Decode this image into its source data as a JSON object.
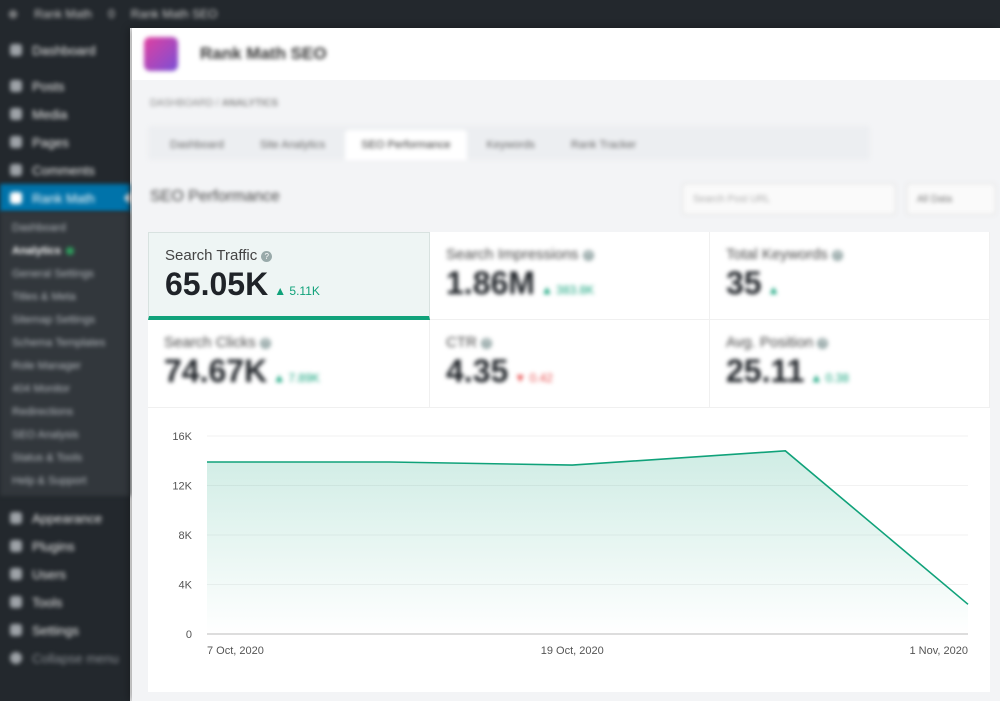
{
  "adminbar": {
    "items": [
      "Rank Math",
      "0",
      "Rank Math SEO"
    ]
  },
  "sidebar": {
    "items": [
      "Dashboard",
      "Posts",
      "Media",
      "Pages",
      "Comments",
      "Rank Math"
    ],
    "submenu": [
      "Dashboard",
      "Analytics",
      "General Settings",
      "Titles & Meta",
      "Sitemap Settings",
      "Schema Templates",
      "Role Manager",
      "404 Monitor",
      "Redirections",
      "SEO Analysis",
      "Status & Tools",
      "Help & Support"
    ],
    "lower": [
      "Appearance",
      "Plugins",
      "Users",
      "Tools",
      "Settings",
      "Collapse menu"
    ]
  },
  "header": {
    "title": "Rank Math SEO"
  },
  "breadcrumb": {
    "parent": "DASHBOARD",
    "current": "ANALYTICS"
  },
  "tabs": [
    "Dashboard",
    "Site Analytics",
    "SEO Performance",
    "Keywords",
    "Rank Tracker"
  ],
  "page": {
    "title": "SEO Performance",
    "search_placeholder": "Search Post URL",
    "filter": "All Data"
  },
  "cards": [
    {
      "label": "Search Traffic",
      "value": "65.05K",
      "delta": "5.11K",
      "trend": "up",
      "selected": true
    },
    {
      "label": "Search Impressions",
      "value": "1.86M",
      "delta": "383.8K",
      "trend": "up"
    },
    {
      "label": "Total Keywords",
      "value": "35",
      "delta": "",
      "trend": "up"
    },
    {
      "label": "Search Clicks",
      "value": "74.67K",
      "delta": "7.89K",
      "trend": "up"
    },
    {
      "label": "CTR",
      "value": "4.35",
      "delta": "0.42",
      "trend": "down"
    },
    {
      "label": "Avg. Position",
      "value": "25.11",
      "delta": "0.38",
      "trend": "up"
    }
  ],
  "colors": {
    "accent": "#10a27a",
    "negative": "#e85050",
    "sidebar": "#23282d",
    "active": "#0073aa"
  },
  "chart_data": {
    "type": "area",
    "x": [
      "7 Oct, 2020",
      "13 Oct, 2020",
      "19 Oct, 2020",
      "26 Oct, 2020",
      "1 Nov, 2020"
    ],
    "values": [
      13900,
      13900,
      13650,
      14800,
      2400
    ],
    "ylim": [
      0,
      16000
    ],
    "yticks": [
      "0",
      "4K",
      "8K",
      "12K",
      "16K"
    ],
    "xticks": [
      "7 Oct, 2020",
      "19 Oct, 2020",
      "1 Nov, 2020"
    ],
    "grid": true
  }
}
